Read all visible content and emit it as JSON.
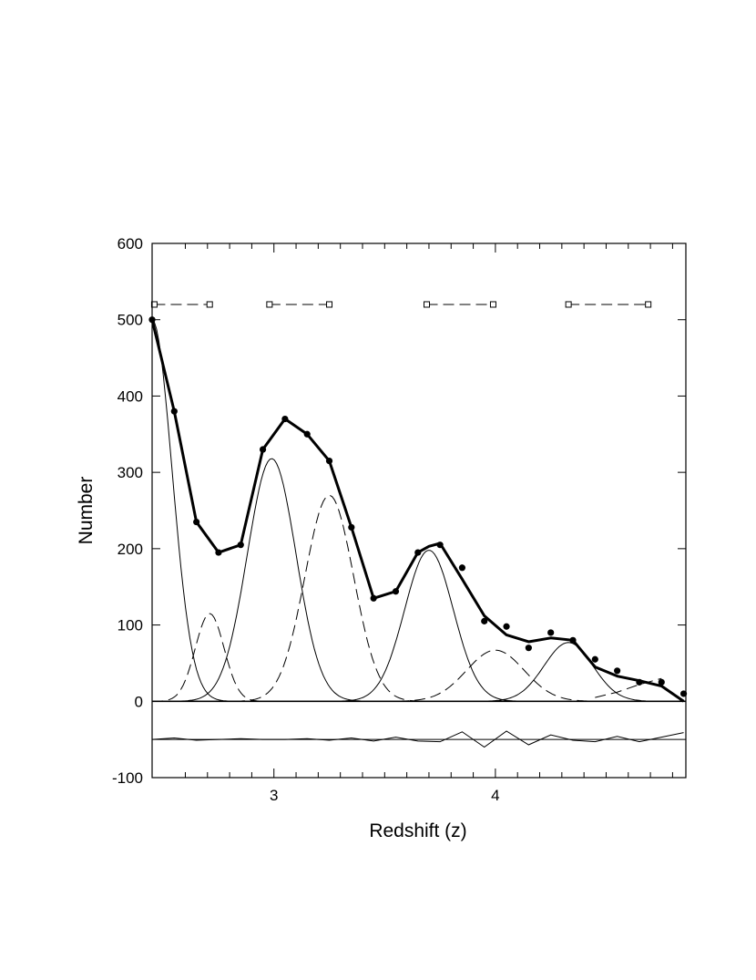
{
  "chart_data": {
    "type": "line",
    "xlabel": "Redshift (z)",
    "ylabel": "Number",
    "xlim": [
      2.45,
      4.86
    ],
    "ylim": [
      -100,
      600
    ],
    "x_ticks": [
      3,
      4
    ],
    "x_tick_labels": [
      "3",
      "4"
    ],
    "x_minor_ticks": [
      2.6,
      2.7,
      2.8,
      2.9,
      3.1,
      3.2,
      3.3,
      3.4,
      3.5,
      3.6,
      3.7,
      3.8,
      3.9,
      4.1,
      4.2,
      4.3,
      4.4,
      4.5,
      4.6,
      4.7,
      4.8
    ],
    "y_ticks": [
      -100,
      0,
      100,
      200,
      300,
      400,
      500,
      600
    ],
    "y_tick_labels": [
      "-100",
      "0",
      "100",
      "200",
      "300",
      "400",
      "500",
      "600"
    ],
    "grid": false,
    "legend": "none",
    "observed_points": {
      "x": [
        2.45,
        2.55,
        2.65,
        2.75,
        2.85,
        2.95,
        3.05,
        3.15,
        3.25,
        3.35,
        3.45,
        3.55,
        3.65,
        3.75,
        3.85,
        3.95,
        4.05,
        4.15,
        4.25,
        4.35,
        4.45,
        4.55,
        4.65,
        4.75,
        4.85
      ],
      "y": [
        500,
        380,
        235,
        195,
        205,
        330,
        370,
        350,
        315,
        228,
        135,
        144,
        195,
        205,
        175,
        105,
        98,
        70,
        90,
        80,
        55,
        40,
        25,
        25,
        10
      ]
    },
    "total_fit": {
      "x": [
        2.45,
        2.55,
        2.65,
        2.75,
        2.85,
        2.95,
        3.05,
        3.15,
        3.25,
        3.35,
        3.45,
        3.55,
        3.65,
        3.7,
        3.75,
        3.85,
        3.95,
        4.05,
        4.15,
        4.25,
        4.35,
        4.45,
        4.55,
        4.65,
        4.75,
        4.85
      ],
      "y": [
        500,
        380,
        235,
        195,
        205,
        330,
        370,
        350,
        315,
        228,
        135,
        144,
        195,
        203,
        207,
        160,
        112,
        87,
        78,
        83,
        80,
        45,
        33,
        27,
        20,
        0
      ]
    },
    "components": [
      {
        "style": "solid",
        "amplitude": 500,
        "center": 2.45,
        "sigma": 0.09
      },
      {
        "style": "dashed",
        "amplitude": 115,
        "center": 2.71,
        "sigma": 0.065
      },
      {
        "style": "solid",
        "amplitude": 318,
        "center": 2.99,
        "sigma": 0.11
      },
      {
        "style": "dashed",
        "amplitude": 270,
        "center": 3.25,
        "sigma": 0.11
      },
      {
        "style": "solid",
        "amplitude": 198,
        "center": 3.7,
        "sigma": 0.11
      },
      {
        "style": "dashed",
        "amplitude": 67,
        "center": 4.0,
        "sigma": 0.13
      },
      {
        "style": "solid",
        "amplitude": 77,
        "center": 4.33,
        "sigma": 0.11
      }
    ],
    "dashed_tail": {
      "x": [
        4.45,
        4.55,
        4.65,
        4.75
      ],
      "y": [
        5,
        12,
        22,
        30
      ]
    },
    "intervals": [
      {
        "x0": 2.46,
        "x1": 2.71,
        "y": 520
      },
      {
        "x0": 2.98,
        "x1": 3.25,
        "y": 520
      },
      {
        "x0": 3.69,
        "x1": 3.99,
        "y": 520
      },
      {
        "x0": 4.33,
        "x1": 4.69,
        "y": 520
      }
    ],
    "residual_baseline": -50,
    "residuals": {
      "x": [
        2.45,
        2.55,
        2.65,
        2.75,
        2.85,
        2.95,
        3.05,
        3.15,
        3.25,
        3.35,
        3.45,
        3.55,
        3.65,
        3.75,
        3.85,
        3.95,
        4.05,
        4.15,
        4.25,
        4.35,
        4.45,
        4.55,
        4.65,
        4.75,
        4.85
      ],
      "y": [
        -50,
        -48,
        -51,
        -50,
        -49,
        -50,
        -50,
        -49,
        -51,
        -48,
        -52,
        -47,
        -52,
        -53,
        -40,
        -60,
        -39,
        -57,
        -44,
        -51,
        -53,
        -46,
        -53,
        -47,
        -41
      ]
    }
  }
}
